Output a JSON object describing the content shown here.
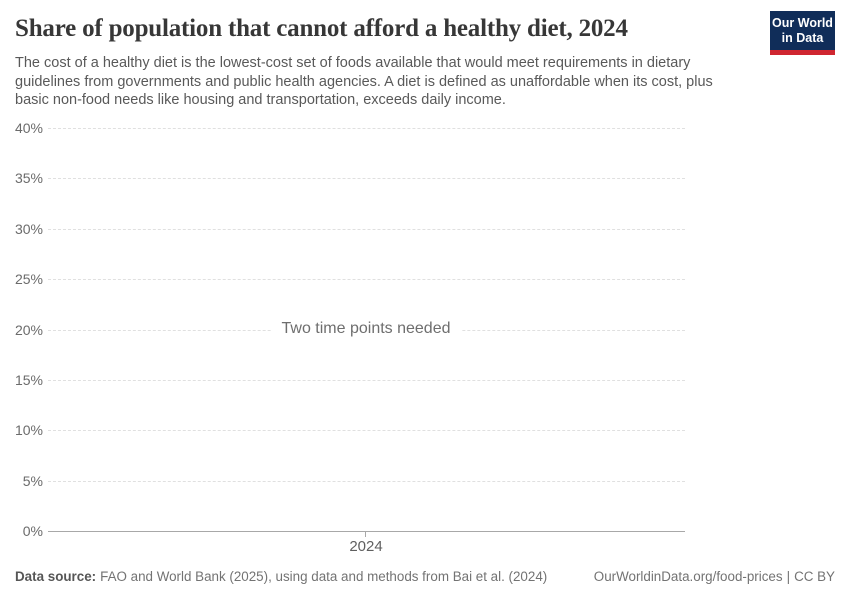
{
  "header": {
    "title": "Share of population that cannot afford a healthy diet, 2024",
    "subtitle": "The cost of a healthy diet is the lowest-cost set of foods available that would meet requirements in dietary guidelines from governments and public health agencies. A diet is defined as unaffordable when its cost, plus basic non-food needs like housing and transportation, exceeds daily income.",
    "logo": {
      "line1": "Our World",
      "line2": "in Data",
      "bg_color": "#102d59",
      "stripe_color": "#cf2630"
    }
  },
  "chart_data": {
    "type": "line",
    "title": "Share of population that cannot afford a healthy diet, 2024",
    "series": [],
    "empty_message": "Two time points needed",
    "x_ticks": [
      2024
    ],
    "x_tick_labels": [
      "2024"
    ],
    "y_ticks": [
      0,
      5,
      10,
      15,
      20,
      25,
      30,
      35,
      40
    ],
    "y_tick_labels": [
      "0%",
      "5%",
      "10%",
      "15%",
      "20%",
      "25%",
      "30%",
      "35%",
      "40%"
    ],
    "ylim": [
      0,
      40
    ],
    "grid": "horizontal-dashed",
    "legend": "none"
  },
  "footer": {
    "source_label": "Data source:",
    "source_text": "FAO and World Bank (2025), using data and methods from Bai et al. (2024)",
    "attribution_link": "OurWorldinData.org/food-prices",
    "separator": "|",
    "license": "CC BY"
  },
  "colors": {
    "title": "#373737",
    "subtitle": "#595959",
    "tick_label": "#6b6b6b",
    "gridline": "#e0e0e0",
    "axis_line": "#a8a8a8",
    "empty_message": "#6e6e6e",
    "footer": "#737373",
    "background": "#ffffff"
  }
}
